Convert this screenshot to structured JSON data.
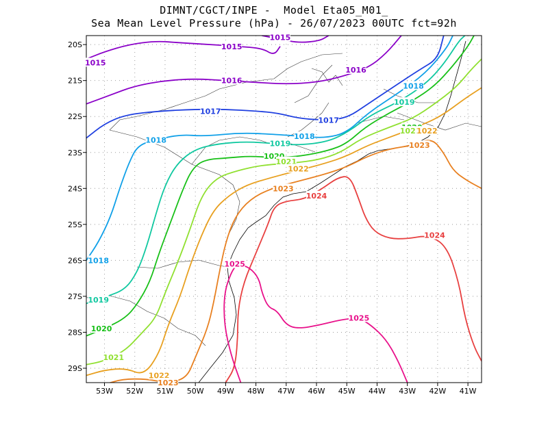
{
  "header": {
    "line1": "DIMNT/CGCT/INPE -  Model Eta05_M01_",
    "line2": "Sea Mean Level Pressure (hPa) - 26/07/2023 00UTC fct=92h"
  },
  "axes": {
    "lon_range": [
      -53.6,
      -40.55
    ],
    "lat_range": [
      -29.4,
      -19.75
    ],
    "x_ticks": [
      {
        "lon": -53,
        "label": "53W"
      },
      {
        "lon": -52,
        "label": "52W"
      },
      {
        "lon": -51,
        "label": "51W"
      },
      {
        "lon": -50,
        "label": "50W"
      },
      {
        "lon": -49,
        "label": "49W"
      },
      {
        "lon": -48,
        "label": "48W"
      },
      {
        "lon": -47,
        "label": "47W"
      },
      {
        "lon": -46,
        "label": "46W"
      },
      {
        "lon": -45,
        "label": "45W"
      },
      {
        "lon": -44,
        "label": "44W"
      },
      {
        "lon": -43,
        "label": "43W"
      },
      {
        "lon": -42,
        "label": "42W"
      },
      {
        "lon": -41,
        "label": "41W"
      }
    ],
    "y_ticks": [
      {
        "lat": -20,
        "label": "20S"
      },
      {
        "lat": -21,
        "label": "21S"
      },
      {
        "lat": -22,
        "label": "22S"
      },
      {
        "lat": -23,
        "label": "23S"
      },
      {
        "lat": -24,
        "label": "24S"
      },
      {
        "lat": -25,
        "label": "25S"
      },
      {
        "lat": -26,
        "label": "26S"
      },
      {
        "lat": -27,
        "label": "27S"
      },
      {
        "lat": -28,
        "label": "28S"
      },
      {
        "lat": -29,
        "label": "29S"
      }
    ]
  },
  "isobars": [
    {
      "value": 1015,
      "label": "1015",
      "color": "#8a00c8",
      "points": [
        [
          -53.6,
          -20.4
        ],
        [
          -53,
          -20.2
        ],
        [
          -52.2,
          -20
        ],
        [
          -51.3,
          -19.9
        ],
        [
          -50.5,
          -19.95
        ],
        [
          -49.5,
          -20
        ],
        [
          -48.6,
          -20.05
        ],
        [
          -47.8,
          -20.1
        ],
        [
          -47.4,
          -20.3
        ],
        [
          -47.2,
          -20.05
        ]
      ],
      "labels": [
        [
          -53.3,
          -20.5
        ],
        [
          -48.8,
          -20.05
        ]
      ]
    },
    {
      "value": 1015,
      "label": "1015",
      "color": "#8a00c8",
      "points": [
        [
          -47.8,
          -19.75
        ],
        [
          -47.2,
          -19.85
        ],
        [
          -46.6,
          -19.95
        ],
        [
          -45.9,
          -19.9
        ],
        [
          -45.6,
          -19.75
        ]
      ],
      "labels": [
        [
          -47.2,
          -19.8
        ]
      ]
    },
    {
      "value": 1016,
      "label": "1016",
      "color": "#8a00c8",
      "points": [
        [
          -53.6,
          -21.65
        ],
        [
          -52.8,
          -21.4
        ],
        [
          -52,
          -21.15
        ],
        [
          -51,
          -21
        ],
        [
          -50,
          -20.95
        ],
        [
          -49,
          -21
        ],
        [
          -48,
          -21.05
        ],
        [
          -47,
          -21.1
        ],
        [
          -46,
          -21.05
        ],
        [
          -45.2,
          -20.9
        ],
        [
          -44.3,
          -20.65
        ],
        [
          -43.7,
          -20.25
        ],
        [
          -43.2,
          -19.75
        ]
      ],
      "labels": [
        [
          -48.8,
          -21
        ],
        [
          -44.7,
          -20.7
        ]
      ]
    },
    {
      "value": 1017,
      "label": "1017",
      "color": "#2040e0",
      "points": [
        [
          -53.6,
          -22.6
        ],
        [
          -53,
          -22.2
        ],
        [
          -52.3,
          -21.95
        ],
        [
          -51.2,
          -21.85
        ],
        [
          -50,
          -21.8
        ],
        [
          -49,
          -21.8
        ],
        [
          -48,
          -21.85
        ],
        [
          -47.3,
          -21.9
        ],
        [
          -46.6,
          -22.05
        ],
        [
          -45.8,
          -22.1
        ],
        [
          -45,
          -22.05
        ],
        [
          -44.3,
          -21.65
        ],
        [
          -43.5,
          -21.2
        ],
        [
          -42.6,
          -20.7
        ],
        [
          -42,
          -20.4
        ],
        [
          -41.8,
          -19.75
        ]
      ],
      "labels": [
        [
          -49.5,
          -21.85
        ],
        [
          -45.6,
          -22.1
        ]
      ]
    },
    {
      "value": 1018,
      "label": "1018",
      "color": "#10a0e8",
      "points": [
        [
          -53.6,
          -26
        ],
        [
          -53.2,
          -25.5
        ],
        [
          -52.8,
          -24.8
        ],
        [
          -52.5,
          -24
        ],
        [
          -52.2,
          -23.3
        ],
        [
          -51.9,
          -22.8
        ],
        [
          -51.3,
          -22.65
        ],
        [
          -50.5,
          -22.5
        ],
        [
          -49.7,
          -22.55
        ],
        [
          -48.5,
          -22.45
        ],
        [
          -47.3,
          -22.5
        ],
        [
          -46.5,
          -22.55
        ],
        [
          -45.7,
          -22.6
        ],
        [
          -45,
          -22.45
        ],
        [
          -44.3,
          -21.9
        ],
        [
          -43.3,
          -21.35
        ],
        [
          -42.4,
          -20.8
        ],
        [
          -41.7,
          -20.1
        ],
        [
          -41.5,
          -19.75
        ]
      ],
      "labels": [
        [
          -51.3,
          -22.65
        ],
        [
          -46.4,
          -22.55
        ],
        [
          -42.8,
          -21.15
        ],
        [
          -53.2,
          -26
        ]
      ]
    },
    {
      "value": 1019,
      "label": "1019",
      "color": "#10c8a0",
      "points": [
        [
          -53.6,
          -27.2
        ],
        [
          -52.9,
          -27
        ],
        [
          -52.3,
          -26.8
        ],
        [
          -51.9,
          -26.3
        ],
        [
          -51.6,
          -25.6
        ],
        [
          -51.3,
          -24.7
        ],
        [
          -51,
          -23.9
        ],
        [
          -50.6,
          -23.3
        ],
        [
          -50,
          -22.9
        ],
        [
          -49.2,
          -22.75
        ],
        [
          -48.3,
          -22.7
        ],
        [
          -47.4,
          -22.75
        ],
        [
          -46.6,
          -22.8
        ],
        [
          -45.6,
          -22.7
        ],
        [
          -44.9,
          -22.4
        ],
        [
          -44.2,
          -21.95
        ],
        [
          -43.3,
          -21.6
        ],
        [
          -42.4,
          -21.1
        ],
        [
          -41.8,
          -20.55
        ],
        [
          -41.3,
          -19.9
        ],
        [
          -41.1,
          -19.75
        ]
      ],
      "labels": [
        [
          -47.2,
          -22.75
        ],
        [
          -53.2,
          -27.1
        ],
        [
          -43.1,
          -21.6
        ]
      ]
    },
    {
      "value": 1020,
      "label": "1020",
      "color": "#18c018",
      "points": [
        [
          -53.6,
          -28.1
        ],
        [
          -53,
          -27.9
        ],
        [
          -52.3,
          -27.6
        ],
        [
          -51.9,
          -27.2
        ],
        [
          -51.5,
          -26.6
        ],
        [
          -51.2,
          -25.8
        ],
        [
          -50.8,
          -24.9
        ],
        [
          -50.4,
          -24
        ],
        [
          -50.1,
          -23.45
        ],
        [
          -49.7,
          -23.2
        ],
        [
          -48.9,
          -23.15
        ],
        [
          -48.2,
          -23.1
        ],
        [
          -47.3,
          -23.15
        ],
        [
          -46.5,
          -23.1
        ],
        [
          -45.6,
          -22.95
        ],
        [
          -45,
          -22.75
        ],
        [
          -44.4,
          -22.3
        ],
        [
          -43.6,
          -21.9
        ],
        [
          -42.8,
          -21.55
        ],
        [
          -42.1,
          -21.15
        ],
        [
          -41.5,
          -20.6
        ],
        [
          -41,
          -20.05
        ],
        [
          -40.8,
          -19.75
        ]
      ],
      "labels": [
        [
          -47.4,
          -23.1
        ],
        [
          -53.1,
          -27.9
        ],
        [
          -42.85,
          -22.3
        ]
      ]
    },
    {
      "value": 1021,
      "label": "1021",
      "color": "#90e030",
      "points": [
        [
          -53.6,
          -28.9
        ],
        [
          -53,
          -28.8
        ],
        [
          -52.3,
          -28.5
        ],
        [
          -51.8,
          -28.05
        ],
        [
          -51.3,
          -27.6
        ],
        [
          -51,
          -26.9
        ],
        [
          -50.6,
          -26.1
        ],
        [
          -50.2,
          -25.2
        ],
        [
          -49.8,
          -24.2
        ],
        [
          -49.3,
          -23.7
        ],
        [
          -48.6,
          -23.5
        ],
        [
          -47.8,
          -23.35
        ],
        [
          -46.8,
          -23.3
        ],
        [
          -45.9,
          -23.2
        ],
        [
          -45.2,
          -23
        ],
        [
          -44.5,
          -22.6
        ],
        [
          -43.6,
          -22.3
        ],
        [
          -42.8,
          -22.05
        ],
        [
          -42.1,
          -21.65
        ],
        [
          -41.4,
          -21.2
        ],
        [
          -40.9,
          -20.7
        ],
        [
          -40.55,
          -20.4
        ]
      ],
      "labels": [
        [
          -47,
          -23.25
        ],
        [
          -52.7,
          -28.7
        ],
        [
          -42.9,
          -22.4
        ]
      ]
    },
    {
      "value": 1022,
      "label": "1022",
      "color": "#e8a020",
      "points": [
        [
          -53.6,
          -29.2
        ],
        [
          -53,
          -29.05
        ],
        [
          -52.3,
          -29
        ],
        [
          -51.7,
          -29.2
        ],
        [
          -51.2,
          -28.6
        ],
        [
          -50.9,
          -27.8
        ],
        [
          -50.5,
          -27
        ],
        [
          -50.2,
          -26.2
        ],
        [
          -49.8,
          -25.3
        ],
        [
          -49.4,
          -24.6
        ],
        [
          -48.9,
          -24.2
        ],
        [
          -48.3,
          -23.9
        ],
        [
          -47.5,
          -23.7
        ],
        [
          -46.6,
          -23.5
        ],
        [
          -45.7,
          -23.3
        ],
        [
          -45,
          -23.1
        ],
        [
          -44.3,
          -22.8
        ],
        [
          -43.5,
          -22.55
        ],
        [
          -42.7,
          -22.3
        ],
        [
          -41.9,
          -22
        ],
        [
          -41.1,
          -21.5
        ],
        [
          -40.55,
          -21.2
        ]
      ],
      "labels": [
        [
          -46.6,
          -23.45
        ],
        [
          -51.2,
          -29.2
        ],
        [
          -42.35,
          -22.4
        ]
      ]
    },
    {
      "value": 1023,
      "label": "1023",
      "color": "#e88020",
      "points": [
        [
          -53,
          -29.45
        ],
        [
          -52.4,
          -29.3
        ],
        [
          -51.6,
          -29.3
        ],
        [
          -51,
          -29.4
        ],
        [
          -50.3,
          -29.3
        ],
        [
          -50,
          -28.7
        ],
        [
          -49.6,
          -27.9
        ],
        [
          -49.4,
          -27.2
        ],
        [
          -49.2,
          -26.3
        ],
        [
          -49,
          -25.5
        ],
        [
          -48.7,
          -24.8
        ],
        [
          -48.2,
          -24.3
        ],
        [
          -47.5,
          -24
        ],
        [
          -46.6,
          -23.8
        ],
        [
          -45.7,
          -23.6
        ],
        [
          -45,
          -23.4
        ],
        [
          -44.3,
          -23.1
        ],
        [
          -43.6,
          -22.9
        ],
        [
          -42.8,
          -22.8
        ],
        [
          -42.2,
          -22.6
        ],
        [
          -41.8,
          -23
        ],
        [
          -41.5,
          -23.5
        ],
        [
          -41,
          -23.8
        ],
        [
          -40.55,
          -24
        ]
      ],
      "labels": [
        [
          -47.1,
          -24
        ],
        [
          -50.9,
          -29.4
        ],
        [
          -42.6,
          -22.8
        ]
      ]
    },
    {
      "value": 1024,
      "label": "1024",
      "color": "#e84040",
      "points": [
        [
          -49,
          -29.4
        ],
        [
          -48.7,
          -29
        ],
        [
          -48.6,
          -28.2
        ],
        [
          -48.6,
          -27.4
        ],
        [
          -48.4,
          -26.6
        ],
        [
          -48,
          -25.8
        ],
        [
          -47.6,
          -25
        ],
        [
          -47.4,
          -24.5
        ],
        [
          -47,
          -24.35
        ],
        [
          -46.4,
          -24.3
        ],
        [
          -45.8,
          -24
        ],
        [
          -45.3,
          -23.7
        ],
        [
          -44.9,
          -23.65
        ],
        [
          -44.6,
          -24.3
        ],
        [
          -44.4,
          -24.8
        ],
        [
          -44.1,
          -25.2
        ],
        [
          -43.6,
          -25.4
        ],
        [
          -43,
          -25.4
        ],
        [
          -42.3,
          -25.3
        ],
        [
          -41.7,
          -25.6
        ],
        [
          -41.3,
          -26.6
        ],
        [
          -41.1,
          -27.6
        ],
        [
          -40.8,
          -28.4
        ],
        [
          -40.55,
          -28.8
        ]
      ],
      "labels": [
        [
          -46,
          -24.2
        ],
        [
          -42.1,
          -25.3
        ]
      ]
    },
    {
      "value": 1025,
      "label": "1025",
      "color": "#e8108a",
      "points": [
        [
          -48.5,
          -29.4
        ],
        [
          -48.8,
          -28.7
        ],
        [
          -49.05,
          -27.8
        ],
        [
          -49.05,
          -26.9
        ],
        [
          -48.8,
          -26.3
        ],
        [
          -48.6,
          -26.1
        ],
        [
          -48.2,
          -26.2
        ],
        [
          -47.9,
          -26.5
        ],
        [
          -47.8,
          -26.9
        ],
        [
          -47.6,
          -27.3
        ],
        [
          -47.3,
          -27.4
        ],
        [
          -47,
          -27.8
        ],
        [
          -46.6,
          -27.9
        ],
        [
          -45.9,
          -27.8
        ],
        [
          -45.2,
          -27.65
        ],
        [
          -44.6,
          -27.6
        ],
        [
          -44.2,
          -27.8
        ],
        [
          -43.7,
          -28.2
        ],
        [
          -43.3,
          -28.8
        ],
        [
          -43,
          -29.4
        ]
      ],
      "labels": [
        [
          -48.7,
          -26.1
        ],
        [
          -44.6,
          -27.6
        ]
      ]
    }
  ]
}
